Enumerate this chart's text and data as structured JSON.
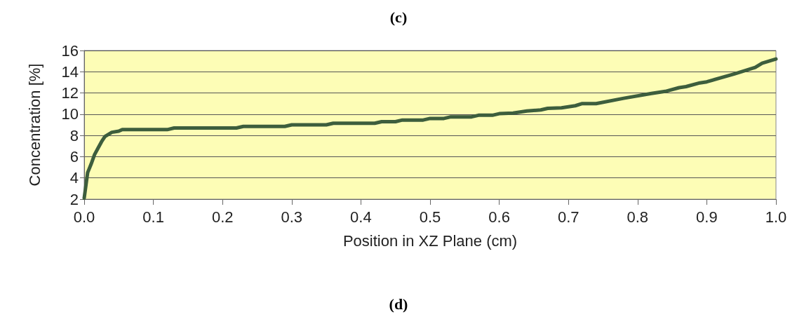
{
  "chart_data": {
    "type": "line",
    "title": "(c)",
    "xlabel": "Position in XZ Plane (cm)",
    "ylabel": "Concentration [%]",
    "annotations": [
      "(d)"
    ],
    "x": [
      0,
      0.005,
      0.01,
      0.015,
      0.02,
      0.025,
      0.03,
      0.04,
      0.05,
      0.055,
      0.1,
      0.12,
      0.13,
      0.2,
      0.22,
      0.23,
      0.29,
      0.3,
      0.35,
      0.36,
      0.42,
      0.43,
      0.45,
      0.46,
      0.49,
      0.5,
      0.52,
      0.53,
      0.56,
      0.57,
      0.59,
      0.6,
      0.62,
      0.64,
      0.66,
      0.67,
      0.69,
      0.71,
      0.72,
      0.74,
      0.78,
      0.82,
      0.83,
      0.84,
      0.86,
      0.87,
      0.89,
      0.9,
      0.94,
      0.97,
      0.98,
      1.0
    ],
    "series": [
      {
        "color": "#3d5e3d",
        "values": [
          2.1,
          4.5,
          5.3,
          6.2,
          6.8,
          7.4,
          7.9,
          8.3,
          8.4,
          8.55,
          8.55,
          8.55,
          8.7,
          8.7,
          8.7,
          8.85,
          8.85,
          9.0,
          9.0,
          9.15,
          9.15,
          9.3,
          9.3,
          9.45,
          9.45,
          9.6,
          9.6,
          9.75,
          9.75,
          9.9,
          9.9,
          10.05,
          10.1,
          10.3,
          10.4,
          10.55,
          10.6,
          10.8,
          11.0,
          11.0,
          11.5,
          11.95,
          12.05,
          12.15,
          12.5,
          12.6,
          12.95,
          13.05,
          13.8,
          14.4,
          14.8,
          15.2
        ]
      }
    ],
    "xlim": [
      0,
      1
    ],
    "xticks": [
      {
        "value": 0,
        "label": "0.0"
      },
      0.1,
      0.2,
      0.3,
      0.4,
      0.5,
      0.6,
      0.7,
      0.8,
      0.9,
      {
        "value": 1,
        "label": "1.0"
      }
    ],
    "ylim": [
      2,
      16
    ],
    "yticks": [
      2,
      4,
      6,
      8,
      10,
      12,
      14,
      16
    ],
    "grid": "y",
    "marker": "none",
    "line_style": "solid"
  }
}
